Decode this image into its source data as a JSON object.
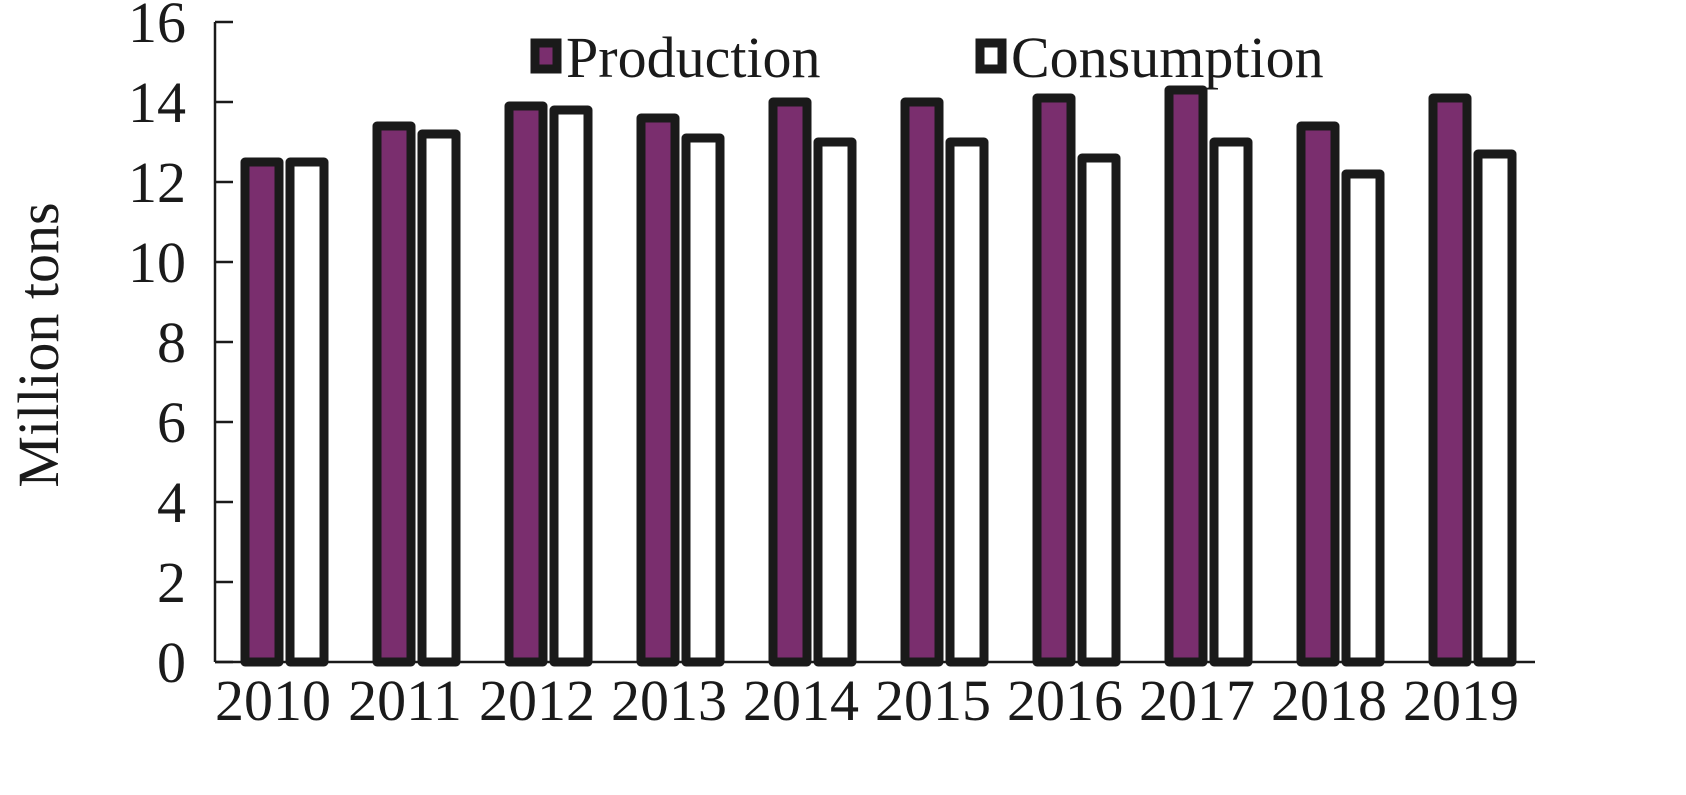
{
  "chart_data": {
    "type": "bar",
    "title": "",
    "xlabel": "",
    "ylabel": "Million tons",
    "ylim": [
      0,
      16
    ],
    "yticks": [
      0,
      2,
      4,
      6,
      8,
      10,
      12,
      14,
      16
    ],
    "categories": [
      "2010",
      "2011",
      "2012",
      "2013",
      "2014",
      "2015",
      "2016",
      "2017",
      "2018",
      "2019"
    ],
    "series": [
      {
        "name": "Production",
        "color": "#7a2e6e",
        "values": [
          12.5,
          13.4,
          13.9,
          13.6,
          14.0,
          14.0,
          14.1,
          14.3,
          13.4,
          14.1
        ]
      },
      {
        "name": "Consumption",
        "color": "#ffffff",
        "values": [
          12.5,
          13.2,
          13.8,
          13.1,
          13.0,
          13.0,
          12.6,
          13.0,
          12.2,
          12.7
        ]
      }
    ],
    "grid": false,
    "legend_position": "top"
  }
}
